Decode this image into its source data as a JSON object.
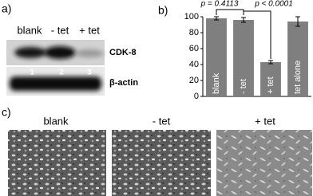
{
  "panel_a": {
    "label": "a)",
    "lanes": [
      "blank",
      "- tet",
      "+ tet"
    ],
    "bands": [
      "CDK-8",
      "β-actin"
    ],
    "lane_numbers": [
      "1",
      "2",
      "3"
    ]
  },
  "chart_data": {
    "type": "bar",
    "panel_label": "b)",
    "categories": [
      "blank",
      "- tet",
      "+ tet",
      "tet alone"
    ],
    "values": [
      98,
      96,
      43,
      94
    ],
    "errors": [
      2,
      3,
      2,
      6
    ],
    "color": "#7f7f7f",
    "ylim": [
      0,
      100
    ],
    "yticks": [
      0,
      20,
      40,
      60,
      80,
      100
    ],
    "annotations": [
      "p = 0.4113",
      "p < 0.0001"
    ]
  },
  "panel_c": {
    "label": "c)",
    "titles": [
      "blank",
      "- tet",
      "+ tet"
    ]
  }
}
